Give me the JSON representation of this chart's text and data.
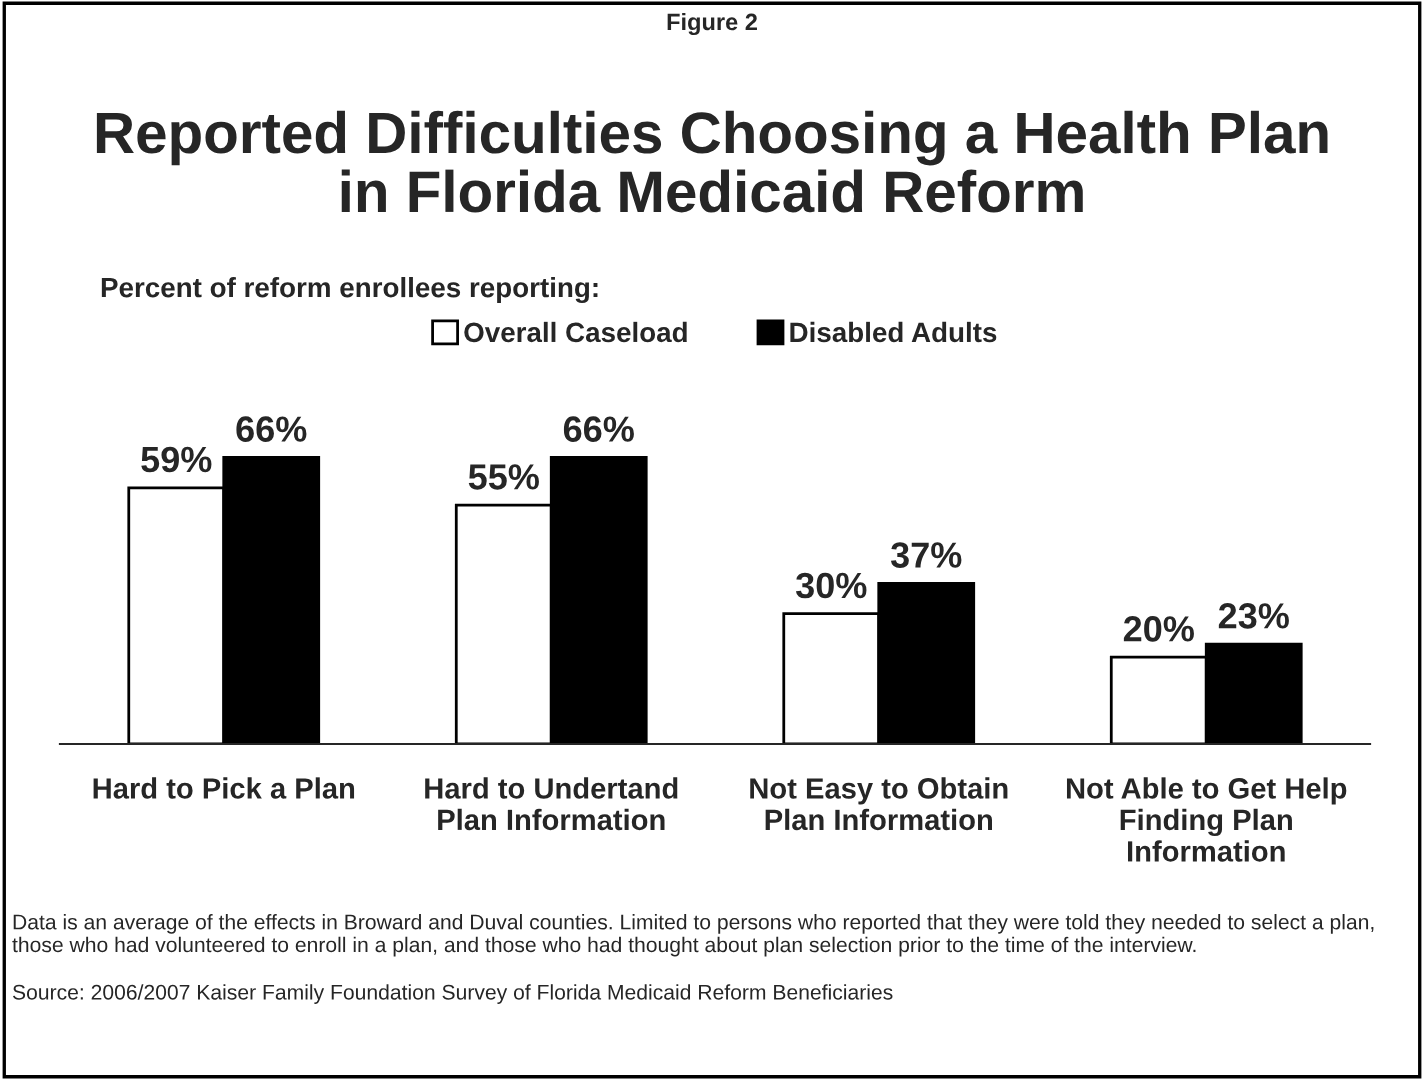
{
  "chart_data": {
    "type": "bar",
    "title": "Reported Difficulties Choosing a Health Plan\nin Florida Medicaid Reform",
    "subtitle": "Percent of reform enrollees reporting:",
    "annotations": [
      "Figure 2",
      "Data is an average of the effects in Broward and Duval counties. Limited to persons who reported that they were told they needed to select a plan, those who had volunteered to enroll in a plan, and those who had thought about plan selection prior to the time of the interview.",
      "Source: 2006/2007 Kaiser Family Foundation Survey of Florida Medicaid Reform Beneficiaries"
    ],
    "categories": [
      "Hard to Pick a Plan",
      "Hard to Undertand\nPlan Information",
      "Not Easy to Obtain\nPlan Information",
      "Not Able to Get Help\nFinding Plan\nInformation"
    ],
    "series": [
      {
        "name": "Overall Caseload",
        "color": "#ffffff",
        "values": [
          59,
          55,
          30,
          20
        ],
        "value_labels": [
          "59%",
          "55%",
          "30%",
          "20%"
        ]
      },
      {
        "name": "Disabled Adults",
        "color": "#000000",
        "values": [
          66,
          66,
          37,
          23
        ],
        "value_labels": [
          "66%",
          "66%",
          "37%",
          "23%"
        ]
      }
    ],
    "legend": "top",
    "grid": false
  }
}
